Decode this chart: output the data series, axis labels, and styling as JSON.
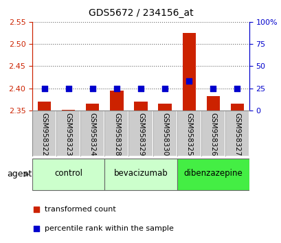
{
  "title": "GDS5672 / 234156_at",
  "samples": [
    "GSM958322",
    "GSM958323",
    "GSM958324",
    "GSM958328",
    "GSM958329",
    "GSM958330",
    "GSM958325",
    "GSM958326",
    "GSM958327"
  ],
  "transformed_count": [
    2.37,
    2.352,
    2.365,
    2.395,
    2.37,
    2.365,
    2.525,
    2.383,
    2.365
  ],
  "percentile_rank": [
    25,
    25,
    25,
    25,
    25,
    25,
    33,
    25,
    25
  ],
  "ylim_left": [
    2.35,
    2.55
  ],
  "ylim_right": [
    0,
    100
  ],
  "yticks_left": [
    2.35,
    2.4,
    2.45,
    2.5,
    2.55
  ],
  "yticks_right": [
    0,
    25,
    50,
    75,
    100
  ],
  "bar_color": "#cc2200",
  "dot_color": "#0000cc",
  "bar_bottom": 2.35,
  "groups": [
    {
      "label": "control",
      "indices": [
        0,
        1,
        2
      ],
      "color": "#ccffcc"
    },
    {
      "label": "bevacizumab",
      "indices": [
        3,
        4,
        5
      ],
      "color": "#ccffcc"
    },
    {
      "label": "dibenzazepine",
      "indices": [
        6,
        7,
        8
      ],
      "color": "#44ee44"
    }
  ],
  "group_label_prefix": "agent",
  "left_axis_color": "#cc2200",
  "right_axis_color": "#0000cc",
  "tick_area_bg": "#cccccc",
  "grid_color": "#000000",
  "grid_alpha": 0.6,
  "bar_width": 0.55,
  "dot_size": 40,
  "dot_marker": "s",
  "ytick_fontsize": 8,
  "label_fontsize": 7.5
}
